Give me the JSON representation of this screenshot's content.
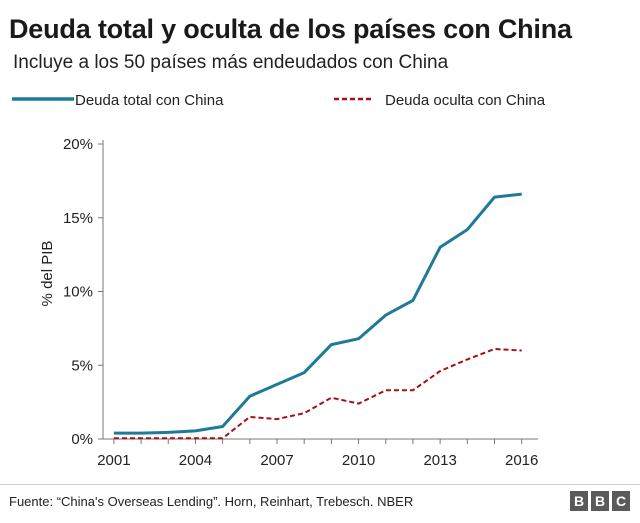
{
  "chart_data": {
    "type": "line",
    "title": "Deuda total y oculta de los países con China",
    "subtitle": "Incluye a los 50 países más endeudados con China",
    "ylabel": "% del PIB",
    "xlabel": "",
    "xlim": [
      2000.6,
      2016.6
    ],
    "ylim": [
      0,
      20
    ],
    "x_ticks": [
      "2001",
      "2004",
      "2007",
      "2010",
      "2013",
      "2016"
    ],
    "y_ticks": [
      "0%",
      "5%",
      "10%",
      "15%",
      "20%"
    ],
    "x": [
      2001,
      2002,
      2003,
      2004,
      2005,
      2006,
      2007,
      2008,
      2009,
      2010,
      2011,
      2012,
      2013,
      2014,
      2015,
      2016
    ],
    "series": [
      {
        "name": "Deuda total con China",
        "style": "solid",
        "values": [
          0.4,
          0.4,
          0.45,
          0.55,
          0.85,
          2.9,
          3.7,
          4.5,
          6.4,
          6.8,
          8.4,
          9.4,
          13.0,
          14.2,
          16.4,
          16.6
        ]
      },
      {
        "name": "Deuda oculta con China",
        "style": "dashed",
        "values": [
          0.05,
          0.05,
          0.05,
          0.05,
          0.05,
          1.5,
          1.35,
          1.75,
          2.8,
          2.4,
          3.3,
          3.3,
          4.6,
          5.4,
          6.1,
          6.0
        ]
      }
    ],
    "colors": {
      "total": "#1f7a98",
      "oculta": "#a50f15",
      "axis": "#777777",
      "grid": "#dddddd"
    },
    "legend_position": "top",
    "grid": false
  },
  "footer": {
    "source": "Fuente: “China's Overseas Lending”. Horn, Reinhart, Trebesch. NBER",
    "logo_letters": [
      "B",
      "B",
      "C"
    ]
  }
}
